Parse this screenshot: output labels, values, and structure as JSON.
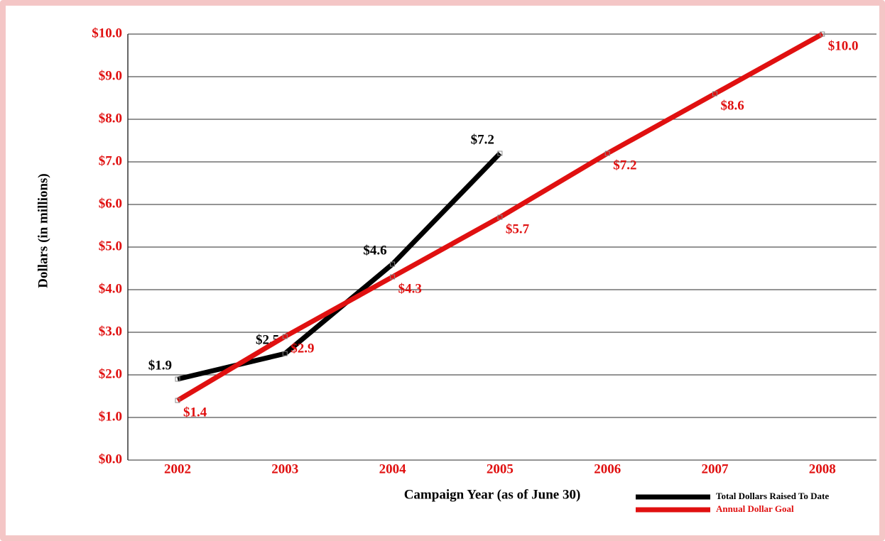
{
  "chart_data": {
    "type": "line",
    "x_label": "Campaign Year (as of June 30)",
    "y_label": "Dollars (in millions)",
    "categories": [
      "2002",
      "2003",
      "2004",
      "2005",
      "2006",
      "2007",
      "2008"
    ],
    "series": [
      {
        "name": "Total Dollars Raised To Date",
        "color": "#000000",
        "values": [
          1.9,
          2.5,
          4.6,
          7.2,
          null,
          null,
          null
        ],
        "value_labels": [
          "$1.9",
          "$2.5",
          "$4.6",
          "$7.2",
          null,
          null,
          null
        ]
      },
      {
        "name": "Annual Dollar Goal",
        "color": "#e01010",
        "values": [
          1.4,
          2.9,
          4.3,
          5.7,
          7.2,
          8.6,
          10.0
        ],
        "value_labels": [
          "$1.4",
          "$2.9",
          "$4.3",
          "$5.7",
          "$7.2",
          "$8.6",
          "$10.0"
        ]
      }
    ],
    "ylim": [
      0,
      10
    ],
    "yticks": [
      {
        "value": 0,
        "label": "$0.0"
      },
      {
        "value": 1,
        "label": "$1.0"
      },
      {
        "value": 2,
        "label": "$2.0"
      },
      {
        "value": 3,
        "label": "$3.0"
      },
      {
        "value": 4,
        "label": "$4.0"
      },
      {
        "value": 5,
        "label": "$5.0"
      },
      {
        "value": 6,
        "label": "$6.0"
      },
      {
        "value": 7,
        "label": "$7.0"
      },
      {
        "value": 8,
        "label": "$8.0"
      },
      {
        "value": 9,
        "label": "$9.0"
      },
      {
        "value": 10,
        "label": "$10.0"
      }
    ],
    "grid": true,
    "legend": "bottom-right",
    "tick_color": "#e01010"
  }
}
